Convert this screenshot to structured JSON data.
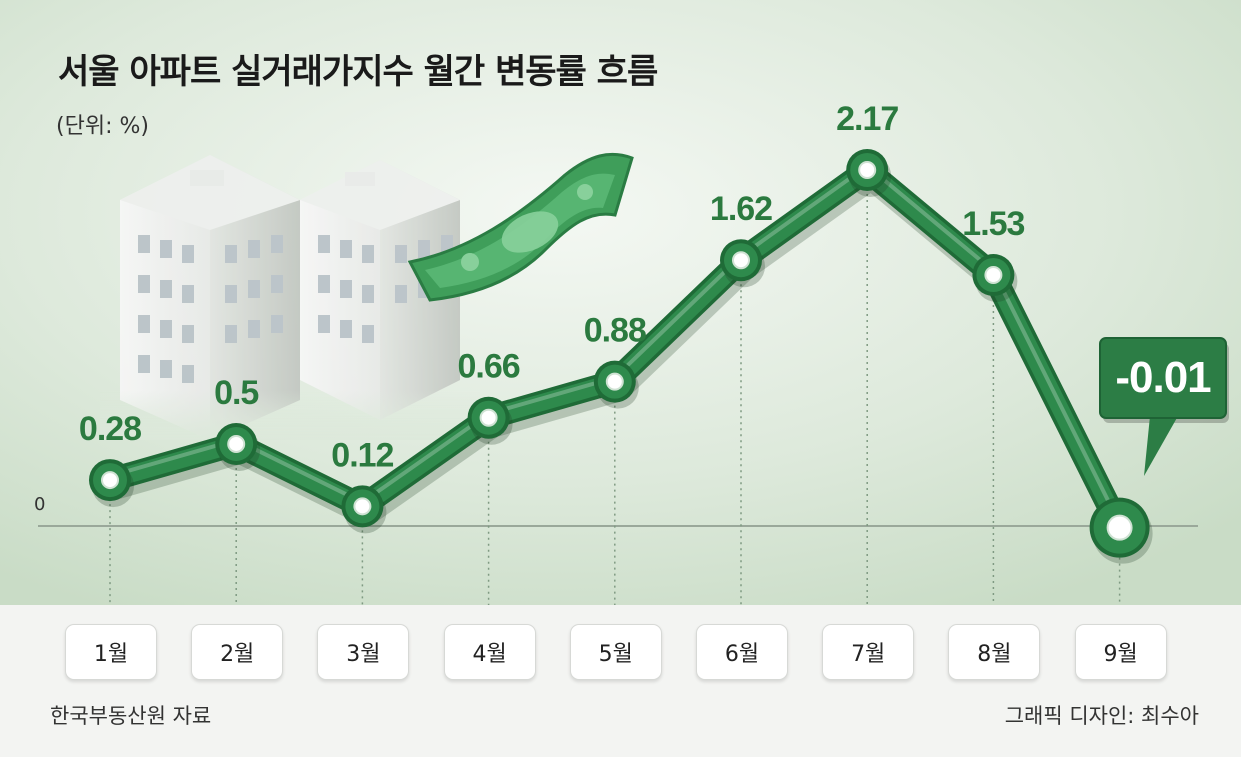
{
  "title": "서울 아파트 실거래가지수 월간 변동률 흐름",
  "unit_label": "(단위: %)",
  "source": "한국부동산원 자료",
  "credit": "그래픽 디자인: 최수아",
  "colors": {
    "line": "#2e8a4c",
    "line_dark": "#1f6b37",
    "label": "#2b7a3f",
    "callout_bg": "#2c7d45"
  },
  "chart_data": {
    "type": "line",
    "title": "서울 아파트 실거래가지수 월간 변동률 흐름",
    "ylabel": "(단위: %)",
    "categories": [
      "1월",
      "2월",
      "3월",
      "4월",
      "5월",
      "6월",
      "7월",
      "8월",
      "9월"
    ],
    "values": [
      0.28,
      0.5,
      0.12,
      0.66,
      0.88,
      1.62,
      2.17,
      1.53,
      -0.01
    ],
    "value_labels": [
      "0.28",
      "0.5",
      "0.12",
      "0.66",
      "0.88",
      "1.62",
      "2.17",
      "1.53",
      "-0.01"
    ],
    "zero_label": "0",
    "ylim": [
      -0.01,
      2.17
    ],
    "grid": false,
    "highlight_index": 8
  }
}
